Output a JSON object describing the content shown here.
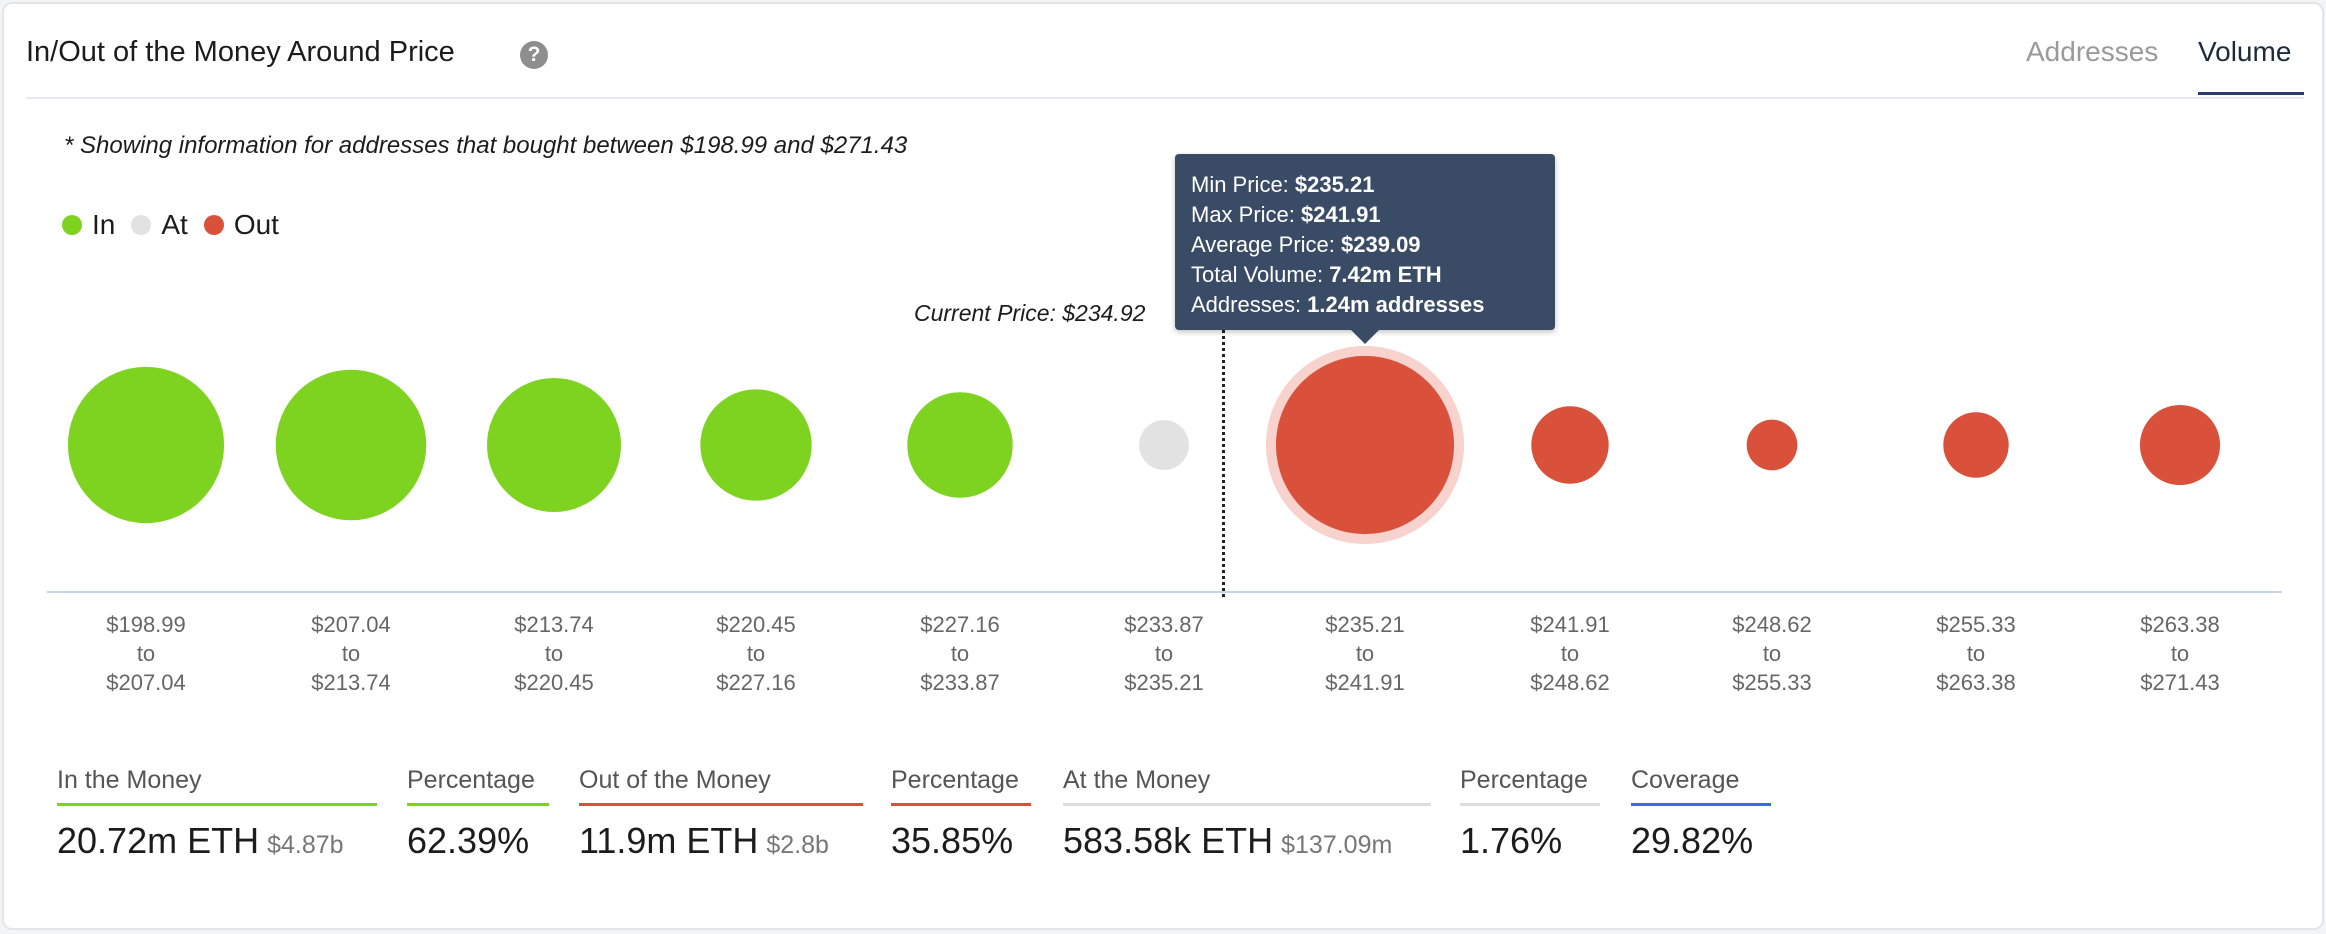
{
  "header": {
    "title": "In/Out of the Money Around Price",
    "tabs": [
      {
        "label": "Addresses",
        "active": false
      },
      {
        "label": "Volume",
        "active": true
      }
    ]
  },
  "note": "* Showing information for addresses that bought between $198.99 and $271.43",
  "legend": [
    {
      "label": "In",
      "color": "#7ed321"
    },
    {
      "label": "At",
      "color": "#e2e2e2"
    },
    {
      "label": "Out",
      "color": "#d9513a"
    }
  ],
  "chart_data": {
    "type": "bubble",
    "current_price_label": "Current Price: $234.92",
    "current_price": 234.92,
    "colors": {
      "In": "#7ed321",
      "At": "#e2e2e2",
      "Out": "#d9513a"
    },
    "bins": [
      {
        "from": "$198.99",
        "to": "$207.04",
        "status": "In",
        "volume_m_eth": 5.7
      },
      {
        "from": "$207.04",
        "to": "$213.74",
        "status": "In",
        "volume_m_eth": 5.3
      },
      {
        "from": "$213.74",
        "to": "$220.45",
        "status": "In",
        "volume_m_eth": 4.2
      },
      {
        "from": "$220.45",
        "to": "$227.16",
        "status": "In",
        "volume_m_eth": 2.9
      },
      {
        "from": "$227.16",
        "to": "$233.87",
        "status": "In",
        "volume_m_eth": 2.6
      },
      {
        "from": "$233.87",
        "to": "$235.21",
        "status": "At",
        "volume_m_eth": 0.58
      },
      {
        "from": "$235.21",
        "to": "$241.91",
        "status": "Out",
        "volume_m_eth": 7.42,
        "highlighted": true
      },
      {
        "from": "$241.91",
        "to": "$248.62",
        "status": "Out",
        "volume_m_eth": 1.4
      },
      {
        "from": "$248.62",
        "to": "$255.33",
        "status": "Out",
        "volume_m_eth": 0.6
      },
      {
        "from": "$255.33",
        "to": "$263.38",
        "status": "Out",
        "volume_m_eth": 1.0
      },
      {
        "from": "$263.38",
        "to": "$271.43",
        "status": "Out",
        "volume_m_eth": 1.5
      }
    ],
    "to_word": "to"
  },
  "tooltip": {
    "rows": [
      {
        "label": "Min Price: ",
        "value": "$235.21"
      },
      {
        "label": "Max Price: ",
        "value": "$241.91"
      },
      {
        "label": "Average Price: ",
        "value": "$239.09"
      },
      {
        "label": "Total Volume: ",
        "value": "7.42m ETH"
      },
      {
        "label": "Addresses: ",
        "value": "1.24m addresses"
      }
    ]
  },
  "stats": [
    {
      "label": "In the Money",
      "value": "20.72m ETH",
      "sub": "$4.87b",
      "color": "#7ed321"
    },
    {
      "label": "Percentage",
      "value": "62.39%",
      "color": "#7ed321"
    },
    {
      "label": "Out of the Money",
      "value": "11.9m ETH",
      "sub": "$2.8b",
      "color": "#d9513a"
    },
    {
      "label": "Percentage",
      "value": "35.85%",
      "color": "#d9513a"
    },
    {
      "label": "At the Money",
      "value": "583.58k ETH",
      "sub": "$137.09m",
      "color": "#dddddd"
    },
    {
      "label": "Percentage",
      "value": "1.76%",
      "color": "#dddddd"
    },
    {
      "label": "Coverage",
      "value": "29.82%",
      "color": "#2f6fe0"
    }
  ]
}
